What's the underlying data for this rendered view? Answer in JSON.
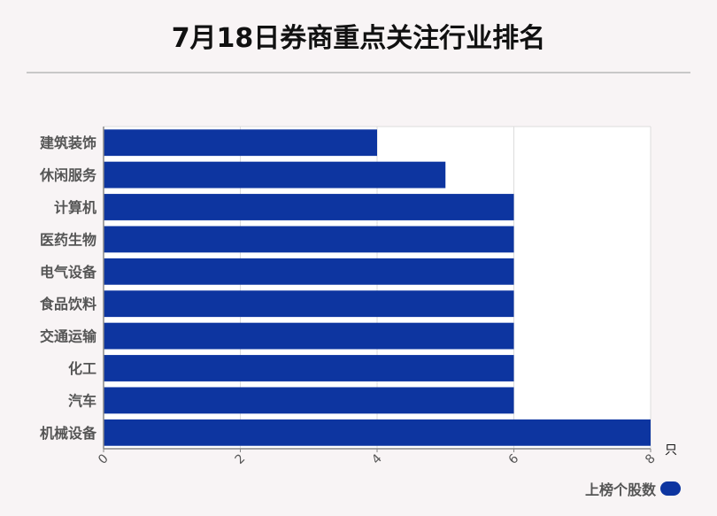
{
  "title": "7月18日券商重点关注行业排名",
  "chart_data": {
    "type": "bar",
    "orientation": "horizontal",
    "categories": [
      "建筑装饰",
      "休闲服务",
      "计算机",
      "医药生物",
      "电气设备",
      "食品饮料",
      "交通运输",
      "化工",
      "汽车",
      "机械设备"
    ],
    "series": [
      {
        "name": "上榜个股数",
        "values": [
          4,
          5,
          6,
          6,
          6,
          6,
          6,
          6,
          6,
          8
        ]
      }
    ],
    "xlim": [
      0,
      8
    ],
    "xticks": [
      "0",
      "2",
      "4",
      "6",
      "8"
    ],
    "unit": "只",
    "grid": true,
    "legend_position": "bottom-right",
    "colors": {
      "bar": "#0d35a0"
    }
  }
}
